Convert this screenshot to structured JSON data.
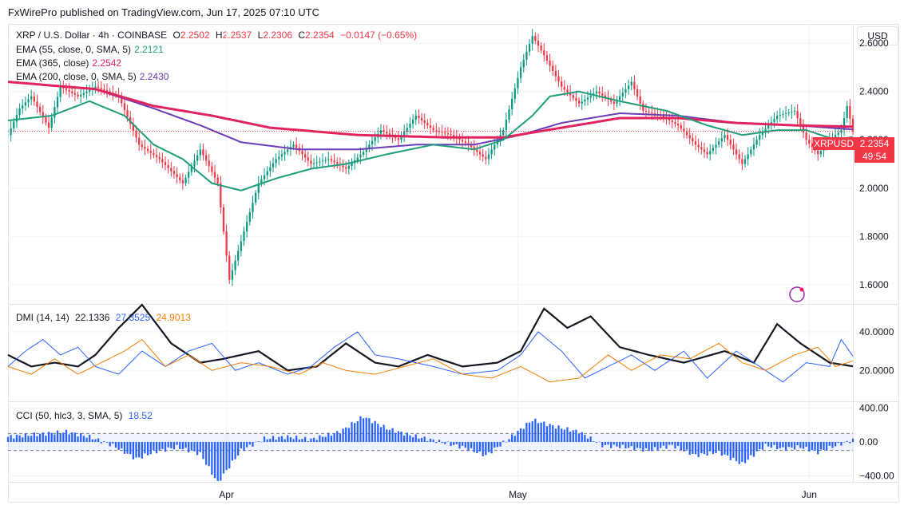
{
  "publisher": "FxWirePro published on TradingView.com, Jun 17, 2025 07:10 UTC",
  "currency_button": "USD",
  "legend": {
    "title": "XRP / U.S. Dollar · 4h · COINBASE",
    "o_label": "O",
    "o": "2.2502",
    "h_label": "H",
    "h": "2.2537",
    "l_label": "L",
    "l": "2.2306",
    "c_label": "C",
    "c": "2.2354",
    "change": "−0.0147 (−0.65%)",
    "ema55_label": "EMA (55, close, 0, SMA, 5)",
    "ema55_value": "2.2121",
    "ema365_label": "EMA (365, close)",
    "ema365_value": "2.2542",
    "ema200_label": "EMA (200, close, 0, SMA, 5)",
    "ema200_value": "2.2430",
    "dmi_label": "DMI (14, 14)",
    "dmi_adx": "22.1336",
    "dmi_plus": "27.3525",
    "dmi_minus": "24.9013",
    "cci_label": "CCI (50, hlc3, 3, SMA, 5)",
    "cci_value": "18.52"
  },
  "price_badge": {
    "symbol": "XRPUSD",
    "price": "2.2354",
    "countdown": "49:54"
  },
  "colors": {
    "up": "#089981",
    "down": "#f23645",
    "ema55": "#1e9d7a",
    "ema365": "#e0245e",
    "ema200": "#6a3cb5",
    "adx": "#131722",
    "di_plus": "#2962ff",
    "di_minus": "#f57c00",
    "cci": "#2962ff"
  },
  "chart_data": [
    {
      "type": "candlestick",
      "panel": "price",
      "ylim": [
        1.52,
        2.68
      ],
      "y_ticks": [
        "2.6000",
        "2.4000",
        "2.2000",
        "2.0000",
        "1.8000",
        "1.6000"
      ],
      "y_tick_values": [
        2.6,
        2.4,
        2.2,
        2.0,
        1.8,
        1.6
      ],
      "x_ticks": [
        "Apr",
        "May",
        "Jun"
      ],
      "anchors": [
        [
          0,
          2.22
        ],
        [
          4,
          2.33
        ],
        [
          8,
          2.38
        ],
        [
          14,
          2.25
        ],
        [
          18,
          2.42
        ],
        [
          24,
          2.38
        ],
        [
          30,
          2.42
        ],
        [
          38,
          2.38
        ],
        [
          45,
          2.18
        ],
        [
          52,
          2.12
        ],
        [
          60,
          2.02
        ],
        [
          66,
          2.16
        ],
        [
          72,
          2.02
        ],
        [
          76,
          1.62
        ],
        [
          80,
          1.78
        ],
        [
          86,
          2.02
        ],
        [
          92,
          2.12
        ],
        [
          98,
          2.18
        ],
        [
          104,
          2.1
        ],
        [
          110,
          2.12
        ],
        [
          116,
          2.08
        ],
        [
          122,
          2.15
        ],
        [
          128,
          2.24
        ],
        [
          134,
          2.2
        ],
        [
          140,
          2.3
        ],
        [
          146,
          2.24
        ],
        [
          152,
          2.22
        ],
        [
          158,
          2.18
        ],
        [
          164,
          2.12
        ],
        [
          170,
          2.24
        ],
        [
          176,
          2.5
        ],
        [
          180,
          2.63
        ],
        [
          184,
          2.55
        ],
        [
          190,
          2.42
        ],
        [
          196,
          2.35
        ],
        [
          202,
          2.4
        ],
        [
          208,
          2.35
        ],
        [
          214,
          2.44
        ],
        [
          218,
          2.32
        ],
        [
          224,
          2.3
        ],
        [
          230,
          2.26
        ],
        [
          236,
          2.18
        ],
        [
          240,
          2.14
        ],
        [
          246,
          2.22
        ],
        [
          252,
          2.1
        ],
        [
          258,
          2.22
        ],
        [
          264,
          2.3
        ],
        [
          270,
          2.32
        ],
        [
          274,
          2.2
        ],
        [
          278,
          2.14
        ],
        [
          282,
          2.2
        ],
        [
          286,
          2.24
        ],
        [
          288,
          2.34
        ],
        [
          290,
          2.235
        ]
      ],
      "ema55": [
        [
          0,
          2.28
        ],
        [
          15,
          2.3
        ],
        [
          28,
          2.36
        ],
        [
          40,
          2.3
        ],
        [
          50,
          2.18
        ],
        [
          60,
          2.12
        ],
        [
          70,
          2.02
        ],
        [
          80,
          1.99
        ],
        [
          92,
          2.04
        ],
        [
          104,
          2.08
        ],
        [
          116,
          2.1
        ],
        [
          130,
          2.14
        ],
        [
          146,
          2.18
        ],
        [
          160,
          2.16
        ],
        [
          170,
          2.2
        ],
        [
          180,
          2.3
        ],
        [
          186,
          2.38
        ],
        [
          196,
          2.4
        ],
        [
          210,
          2.36
        ],
        [
          226,
          2.32
        ],
        [
          240,
          2.26
        ],
        [
          252,
          2.22
        ],
        [
          264,
          2.24
        ],
        [
          274,
          2.24
        ],
        [
          284,
          2.2
        ],
        [
          290,
          2.2121
        ]
      ],
      "ema200": [
        [
          0,
          2.44
        ],
        [
          30,
          2.41
        ],
        [
          50,
          2.33
        ],
        [
          66,
          2.26
        ],
        [
          80,
          2.19
        ],
        [
          100,
          2.16
        ],
        [
          120,
          2.16
        ],
        [
          140,
          2.18
        ],
        [
          160,
          2.18
        ],
        [
          176,
          2.22
        ],
        [
          190,
          2.27
        ],
        [
          210,
          2.31
        ],
        [
          230,
          2.3
        ],
        [
          250,
          2.27
        ],
        [
          270,
          2.26
        ],
        [
          290,
          2.243
        ]
      ],
      "ema365": [
        [
          0,
          2.44
        ],
        [
          30,
          2.41
        ],
        [
          50,
          2.34
        ],
        [
          70,
          2.3
        ],
        [
          90,
          2.25
        ],
        [
          120,
          2.22
        ],
        [
          150,
          2.21
        ],
        [
          170,
          2.21
        ],
        [
          190,
          2.25
        ],
        [
          210,
          2.29
        ],
        [
          230,
          2.29
        ],
        [
          250,
          2.27
        ],
        [
          270,
          2.26
        ],
        [
          290,
          2.2542
        ]
      ]
    },
    {
      "type": "line",
      "panel": "dmi",
      "ylim": [
        4,
        54
      ],
      "y_ticks": [
        "40.0000",
        "20.0000"
      ],
      "y_tick_values": [
        40,
        20
      ],
      "series": [
        {
          "name": "ADX",
          "color": "#131722",
          "points": [
            [
              0,
              28
            ],
            [
              8,
              22
            ],
            [
              16,
              24
            ],
            [
              24,
              22
            ],
            [
              30,
              28
            ],
            [
              38,
              42
            ],
            [
              46,
              54
            ],
            [
              56,
              34
            ],
            [
              66,
              24
            ],
            [
              74,
              26
            ],
            [
              86,
              30
            ],
            [
              96,
              20
            ],
            [
              106,
              22
            ],
            [
              116,
              34
            ],
            [
              126,
              24
            ],
            [
              134,
              22
            ],
            [
              144,
              28
            ],
            [
              156,
              22
            ],
            [
              168,
              24
            ],
            [
              176,
              30
            ],
            [
              184,
              52
            ],
            [
              192,
              42
            ],
            [
              200,
              48
            ],
            [
              210,
              32
            ],
            [
              220,
              28
            ],
            [
              232,
              24
            ],
            [
              246,
              30
            ],
            [
              256,
              24
            ],
            [
              264,
              44
            ],
            [
              272,
              34
            ],
            [
              282,
              24
            ],
            [
              290,
              22.1336
            ]
          ]
        },
        {
          "name": "DI+",
          "color": "#2962ff",
          "points": [
            [
              0,
              22
            ],
            [
              6,
              30
            ],
            [
              12,
              36
            ],
            [
              18,
              28
            ],
            [
              24,
              32
            ],
            [
              30,
              22
            ],
            [
              38,
              18
            ],
            [
              46,
              30
            ],
            [
              54,
              22
            ],
            [
              62,
              30
            ],
            [
              70,
              34
            ],
            [
              78,
              20
            ],
            [
              86,
              24
            ],
            [
              96,
              18
            ],
            [
              104,
              22
            ],
            [
              112,
              32
            ],
            [
              120,
              40
            ],
            [
              126,
              28
            ],
            [
              134,
              26
            ],
            [
              146,
              22
            ],
            [
              156,
              18
            ],
            [
              168,
              20
            ],
            [
              176,
              28
            ],
            [
              182,
              40
            ],
            [
              190,
              30
            ],
            [
              198,
              16
            ],
            [
              206,
              22
            ],
            [
              214,
              28
            ],
            [
              222,
              20
            ],
            [
              232,
              30
            ],
            [
              240,
              16
            ],
            [
              250,
              30
            ],
            [
              258,
              22
            ],
            [
              266,
              14
            ],
            [
              274,
              24
            ],
            [
              282,
              22
            ],
            [
              286,
              36
            ],
            [
              290,
              27.3525
            ]
          ]
        },
        {
          "name": "DI−",
          "color": "#f57c00",
          "points": [
            [
              0,
              22
            ],
            [
              8,
              18
            ],
            [
              16,
              26
            ],
            [
              24,
              18
            ],
            [
              32,
              24
            ],
            [
              40,
              30
            ],
            [
              46,
              36
            ],
            [
              54,
              22
            ],
            [
              62,
              28
            ],
            [
              70,
              20
            ],
            [
              80,
              24
            ],
            [
              90,
              22
            ],
            [
              100,
              18
            ],
            [
              108,
              24
            ],
            [
              116,
              20
            ],
            [
              126,
              18
            ],
            [
              136,
              22
            ],
            [
              146,
              26
            ],
            [
              156,
              18
            ],
            [
              166,
              16
            ],
            [
              176,
              22
            ],
            [
              186,
              14
            ],
            [
              196,
              16
            ],
            [
              206,
              28
            ],
            [
              214,
              20
            ],
            [
              224,
              28
            ],
            [
              234,
              26
            ],
            [
              244,
              34
            ],
            [
              252,
              24
            ],
            [
              260,
              20
            ],
            [
              270,
              28
            ],
            [
              278,
              32
            ],
            [
              284,
              22
            ],
            [
              290,
              24.9013
            ]
          ]
        }
      ]
    },
    {
      "type": "histogram",
      "panel": "cci",
      "name": "CCI",
      "ylim": [
        -470,
        470
      ],
      "y_ticks": [
        "400.00",
        "0.00",
        "−400.00"
      ],
      "y_tick_values": [
        400,
        0,
        -400
      ],
      "band": [
        100,
        -100
      ],
      "values": [
        [
          0,
          60
        ],
        [
          10,
          90
        ],
        [
          20,
          120
        ],
        [
          28,
          60
        ],
        [
          36,
          -40
        ],
        [
          44,
          -200
        ],
        [
          50,
          -120
        ],
        [
          58,
          -60
        ],
        [
          66,
          -140
        ],
        [
          72,
          -480
        ],
        [
          80,
          -100
        ],
        [
          88,
          40
        ],
        [
          96,
          60
        ],
        [
          104,
          30
        ],
        [
          114,
          120
        ],
        [
          122,
          300
        ],
        [
          130,
          160
        ],
        [
          138,
          80
        ],
        [
          146,
          20
        ],
        [
          156,
          -60
        ],
        [
          164,
          -160
        ],
        [
          172,
          40
        ],
        [
          180,
          260
        ],
        [
          188,
          180
        ],
        [
          196,
          120
        ],
        [
          204,
          -40
        ],
        [
          212,
          -60
        ],
        [
          220,
          -100
        ],
        [
          228,
          -40
        ],
        [
          236,
          -160
        ],
        [
          244,
          -120
        ],
        [
          252,
          -260
        ],
        [
          260,
          -40
        ],
        [
          266,
          -80
        ],
        [
          272,
          -60
        ],
        [
          278,
          -120
        ],
        [
          286,
          -20
        ],
        [
          290,
          18.52
        ]
      ]
    }
  ]
}
